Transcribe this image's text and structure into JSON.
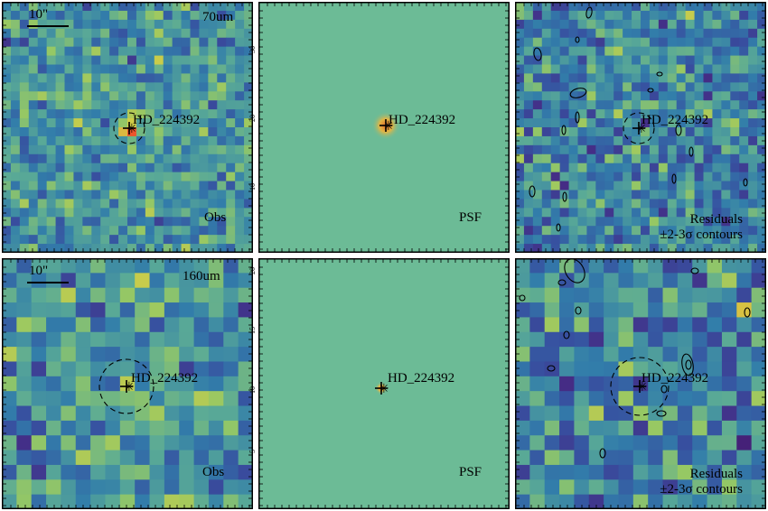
{
  "rows": [
    {
      "band": "70um",
      "scale_bar": "10\"",
      "target": "HD_224392",
      "obs_label": "Obs",
      "psf_label": "PSF",
      "residual_label_1": "Residuals",
      "residual_label_2": "±2-3σ contours",
      "psf_tick_labels": [
        "30",
        "20",
        "10"
      ]
    },
    {
      "band": "160um",
      "scale_bar": "10\"",
      "target": "HD_224392",
      "obs_label": "Obs",
      "psf_label": "PSF",
      "residual_label_1": "Residuals",
      "residual_label_2": "±2-3σ contours",
      "psf_tick_labels": [
        "20",
        "15",
        "10",
        "5"
      ]
    }
  ],
  "colors": {
    "psf_background": "#6cbb96",
    "source_peak": "#e06a2a",
    "contour": "#000000",
    "frame": "#000000"
  }
}
